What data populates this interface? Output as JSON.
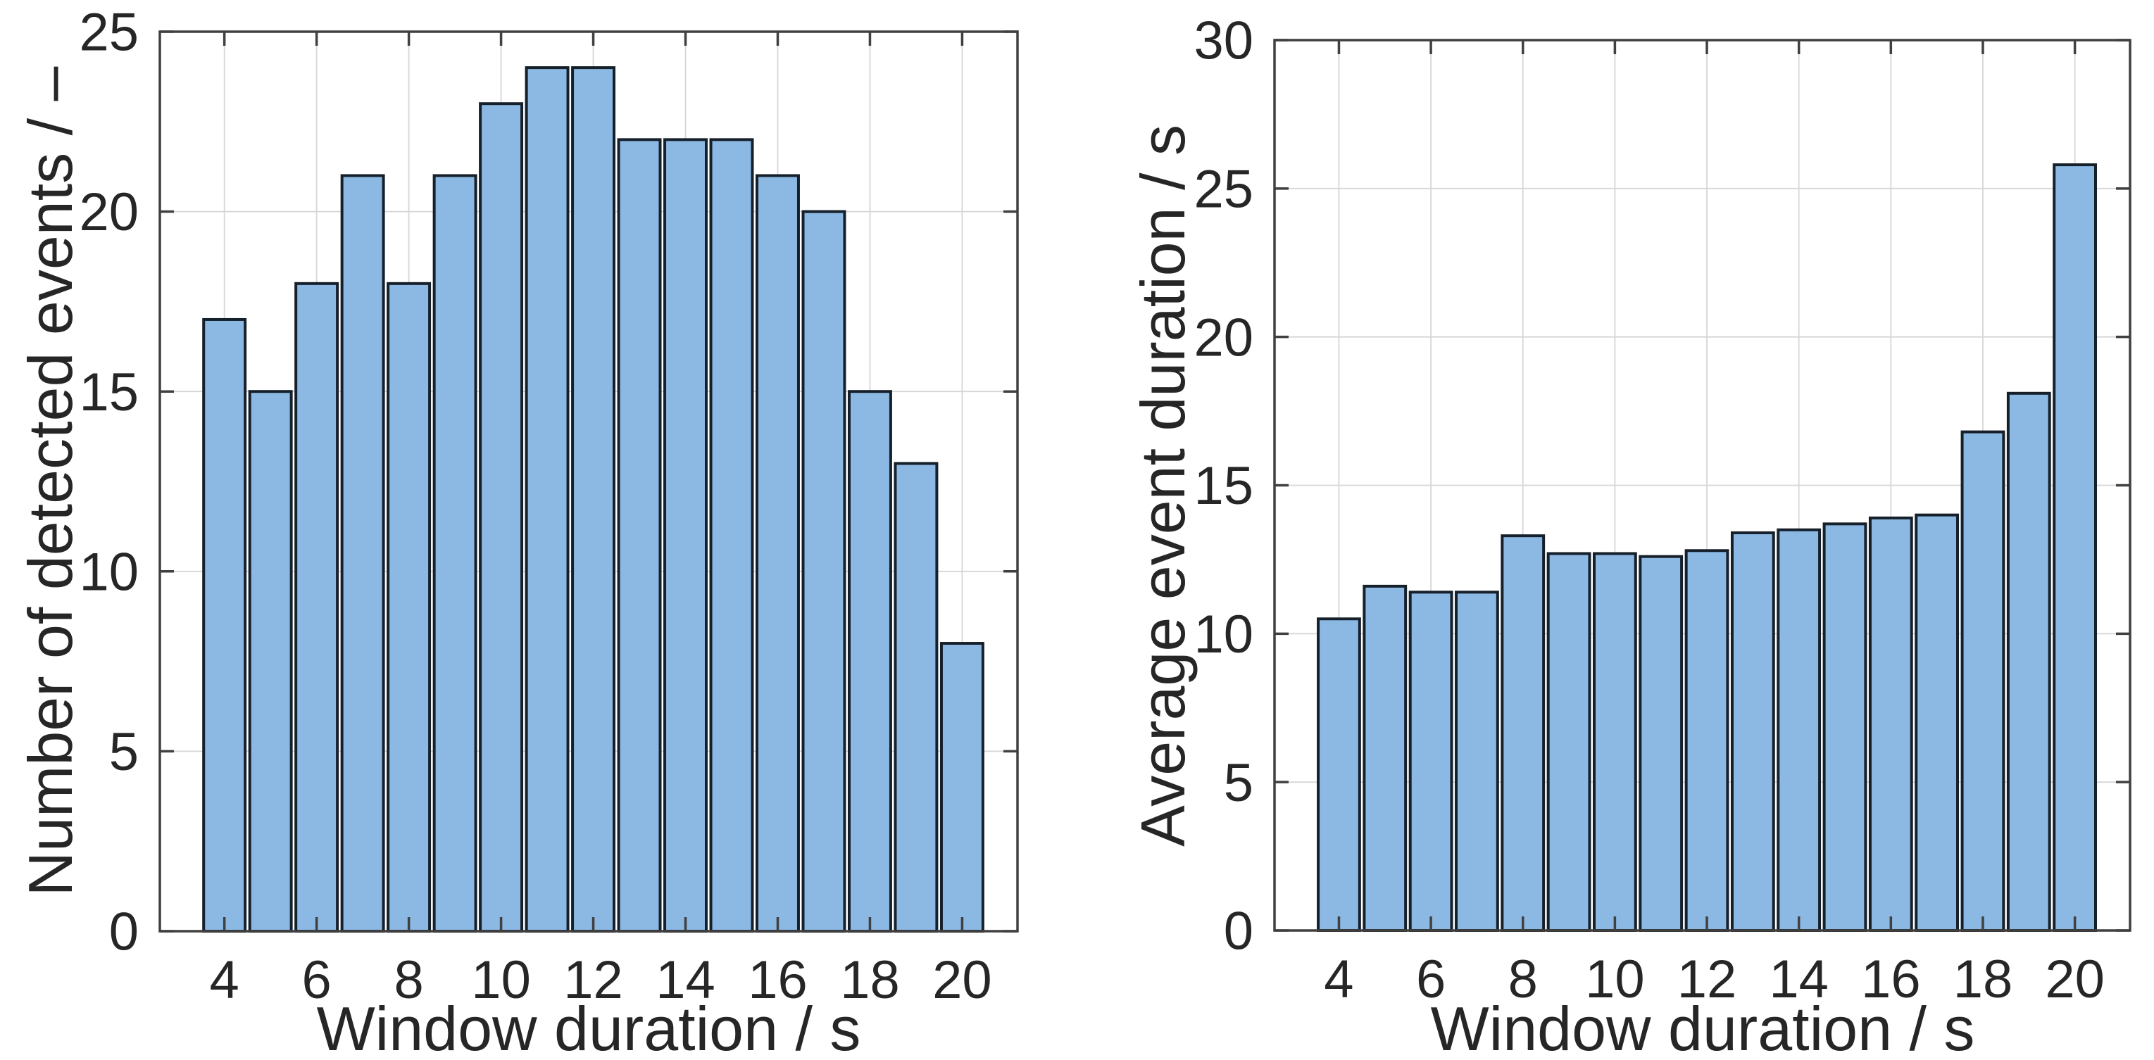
{
  "figure": {
    "background": "#ffffff"
  },
  "style": {
    "bar_fill": "#8cb8e4",
    "bar_edge": "#16202b",
    "grid_color": "#d6d6d6",
    "axis_color": "#404040",
    "text_color": "#262626"
  },
  "left_chart": {
    "xlabel": "Window duration / s",
    "ylabel": "Number of detected events / –"
  },
  "right_chart": {
    "xlabel": "Window duration / s",
    "ylabel": "Average event duration / s"
  },
  "chart_data": [
    {
      "type": "bar",
      "title": "",
      "xlabel": "Window duration / s",
      "ylabel": "Number of detected events / –",
      "categories": [
        4,
        5,
        6,
        7,
        8,
        9,
        10,
        11,
        12,
        13,
        14,
        15,
        16,
        17,
        18,
        19,
        20
      ],
      "values": [
        17,
        15,
        18,
        21,
        18,
        21,
        23,
        24,
        24,
        22,
        22,
        22,
        21,
        20,
        15,
        13,
        8
      ],
      "xlim": [
        2.6,
        21.2
      ],
      "ylim": [
        0,
        25
      ],
      "xticks": [
        4,
        6,
        8,
        10,
        12,
        14,
        16,
        18,
        20
      ],
      "yticks": [
        0,
        5,
        10,
        15,
        20,
        25
      ],
      "grid": true,
      "legend": false,
      "bar_width": 0.9
    },
    {
      "type": "bar",
      "title": "",
      "xlabel": "Window duration / s",
      "ylabel": "Average event duration / s",
      "categories": [
        4,
        5,
        6,
        7,
        8,
        9,
        10,
        11,
        12,
        13,
        14,
        15,
        16,
        17,
        18,
        19,
        20
      ],
      "values": [
        10.5,
        11.6,
        11.4,
        11.4,
        13.3,
        12.7,
        12.7,
        12.6,
        12.8,
        13.4,
        13.5,
        13.7,
        13.9,
        14.0,
        16.8,
        18.1,
        25.8
      ],
      "xlim": [
        2.6,
        21.2
      ],
      "ylim": [
        0,
        30
      ],
      "xticks": [
        4,
        6,
        8,
        10,
        12,
        14,
        16,
        18,
        20
      ],
      "yticks": [
        0,
        5,
        10,
        15,
        20,
        25,
        30
      ],
      "grid": true,
      "legend": false,
      "bar_width": 0.9
    }
  ]
}
